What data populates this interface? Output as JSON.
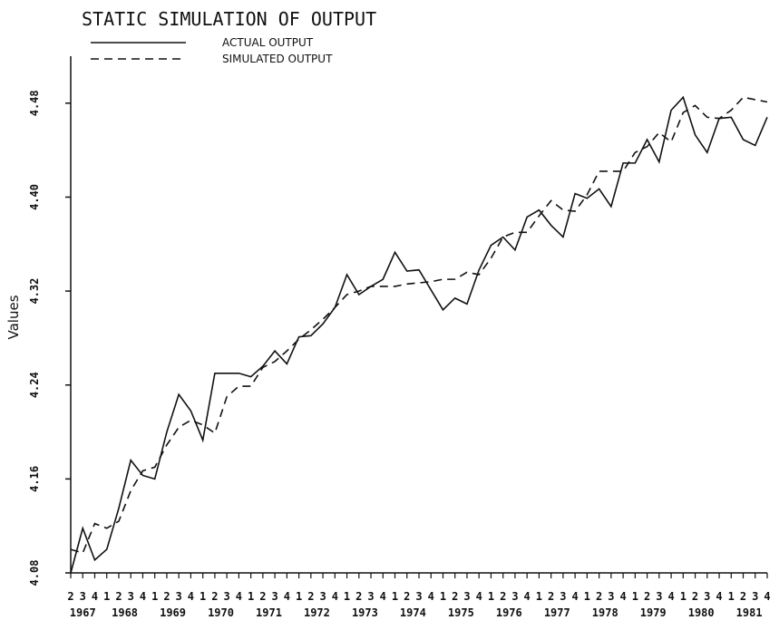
{
  "chart_data": {
    "type": "line",
    "title": "STATIC SIMULATION OF OUTPUT",
    "y_label": "Values",
    "categories": [
      "2",
      "3",
      "4",
      "1",
      "2",
      "3",
      "4",
      "1",
      "2",
      "3",
      "4",
      "1",
      "2",
      "3",
      "4",
      "1",
      "2",
      "3",
      "4",
      "1",
      "2",
      "3",
      "4",
      "1",
      "2",
      "3",
      "4",
      "1",
      "2",
      "3",
      "4",
      "1",
      "2",
      "3",
      "4",
      "1",
      "2",
      "3",
      "4",
      "1",
      "2",
      "3",
      "4",
      "1",
      "2",
      "3",
      "4",
      "1",
      "2",
      "3",
      "4",
      "1",
      "2",
      "3",
      "4",
      "1",
      "2",
      "3",
      "4"
    ],
    "years": [
      "1967",
      "1968",
      "1969",
      "1970",
      "1971",
      "1972",
      "1973",
      "1974",
      "1975",
      "1976",
      "1977",
      "1978",
      "1979",
      "1980",
      "1981"
    ],
    "series": [
      {
        "name": "ACTUAL OUTPUT",
        "color": "#111111",
        "dash": false,
        "values": [
          4.08,
          4.118,
          4.091,
          4.1,
          4.135,
          4.176,
          4.163,
          4.16,
          4.2,
          4.232,
          4.218,
          4.193,
          4.25,
          4.25,
          4.25,
          4.247,
          4.256,
          4.269,
          4.258,
          4.281,
          4.282,
          4.292,
          4.306,
          4.334,
          4.317,
          4.324,
          4.33,
          4.353,
          4.337,
          4.338,
          4.321,
          4.304,
          4.314,
          4.309,
          4.338,
          4.359,
          4.366,
          4.355,
          4.383,
          4.389,
          4.376,
          4.366,
          4.403,
          4.399,
          4.407,
          4.392,
          4.429,
          4.429,
          4.449,
          4.43,
          4.474,
          4.485,
          4.453,
          4.438,
          4.467,
          4.468,
          4.449,
          4.444,
          4.468
        ]
      },
      {
        "name": "SIMULATED OUTPUT",
        "color": "#111111",
        "dash": true,
        "values": [
          4.1,
          4.097,
          4.122,
          4.118,
          4.124,
          4.15,
          4.167,
          4.17,
          4.189,
          4.204,
          4.21,
          4.206,
          4.199,
          4.23,
          4.239,
          4.239,
          4.255,
          4.26,
          4.269,
          4.279,
          4.287,
          4.296,
          4.306,
          4.317,
          4.32,
          4.324,
          4.324,
          4.324,
          4.326,
          4.327,
          4.328,
          4.33,
          4.33,
          4.336,
          4.334,
          4.348,
          4.366,
          4.37,
          4.37,
          4.384,
          4.397,
          4.389,
          4.388,
          4.402,
          4.422,
          4.422,
          4.422,
          4.438,
          4.443,
          4.455,
          4.447,
          4.472,
          4.478,
          4.468,
          4.467,
          4.474,
          4.485,
          4.483,
          4.481
        ]
      }
    ],
    "ylim": [
      4.08,
      4.52
    ],
    "yticks": [
      4.08,
      4.16,
      4.24,
      4.32,
      {
        "value": 4.4,
        "label": "4.40"
      },
      4.48
    ],
    "grid": false
  }
}
